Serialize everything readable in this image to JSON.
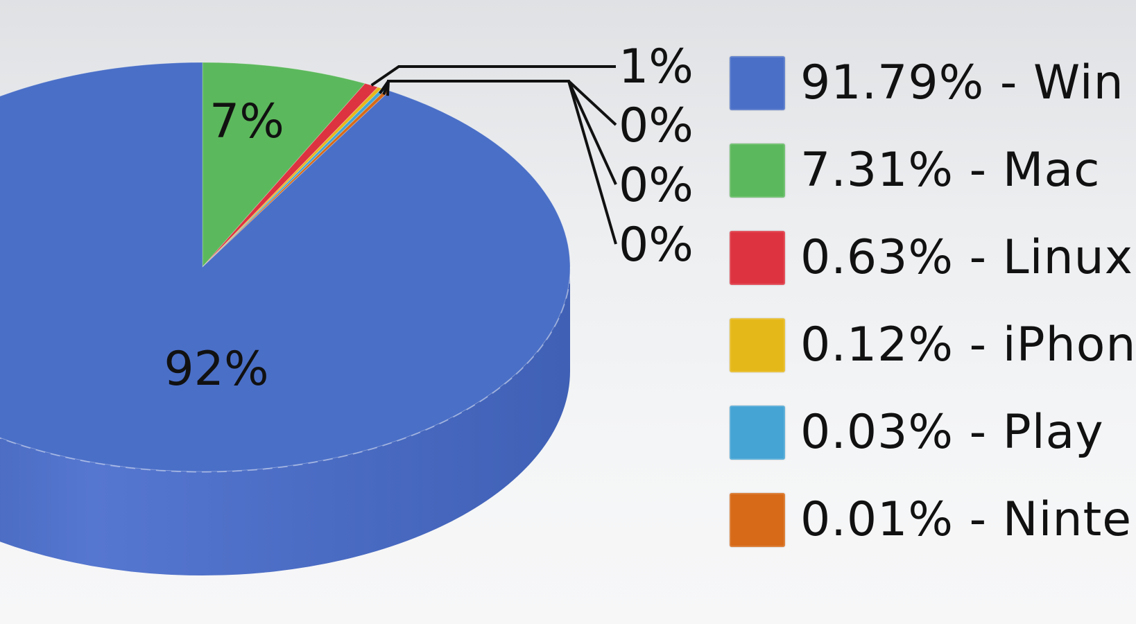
{
  "chart_data": {
    "type": "pie",
    "style": "3d",
    "slices": [
      {
        "pct": 91.79,
        "legend": "91.79% - Win",
        "label": "92%",
        "color": "#4a6fc7"
      },
      {
        "pct": 7.31,
        "legend": "7.31% - Mac",
        "label": "7%",
        "color": "#5cb85c"
      },
      {
        "pct": 0.63,
        "legend": "0.63% - Linux",
        "label": "1%",
        "color": "#dd3340"
      },
      {
        "pct": 0.12,
        "legend": "0.12% - iPhon",
        "label": "0%",
        "color": "#e5b81a"
      },
      {
        "pct": 0.03,
        "legend": "0.03% - Play",
        "label": "0%",
        "color": "#45a4d4"
      },
      {
        "pct": 0.01,
        "legend": "0.01% - Ninte",
        "label": "0%",
        "color": "#d66a18"
      }
    ],
    "legend_position": "right"
  }
}
